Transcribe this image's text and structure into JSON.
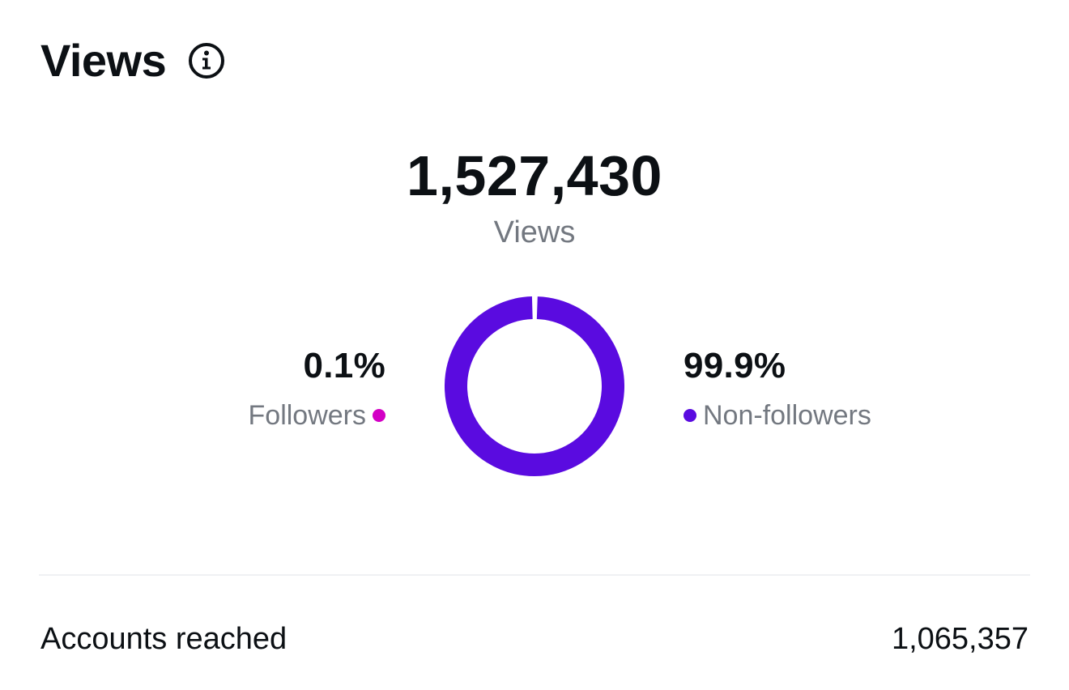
{
  "header": {
    "title": "Views",
    "info_icon": "info-icon"
  },
  "total": {
    "value": "1,527,430",
    "label": "Views"
  },
  "chart_data": {
    "type": "pie",
    "donut": true,
    "categories": [
      "Followers",
      "Non-followers"
    ],
    "values": [
      0.1,
      99.9
    ],
    "colors": [
      "#d300c5",
      "#5a0be0"
    ],
    "title": "",
    "legend": "sides"
  },
  "legend": {
    "followers": {
      "pct": "0.1%",
      "label": "Followers",
      "color": "#d300c5"
    },
    "non_followers": {
      "pct": "99.9%",
      "label": "Non-followers",
      "color": "#5a0be0"
    }
  },
  "metrics": {
    "accounts_reached_label": "Accounts reached",
    "accounts_reached_value": "1,065,357"
  }
}
